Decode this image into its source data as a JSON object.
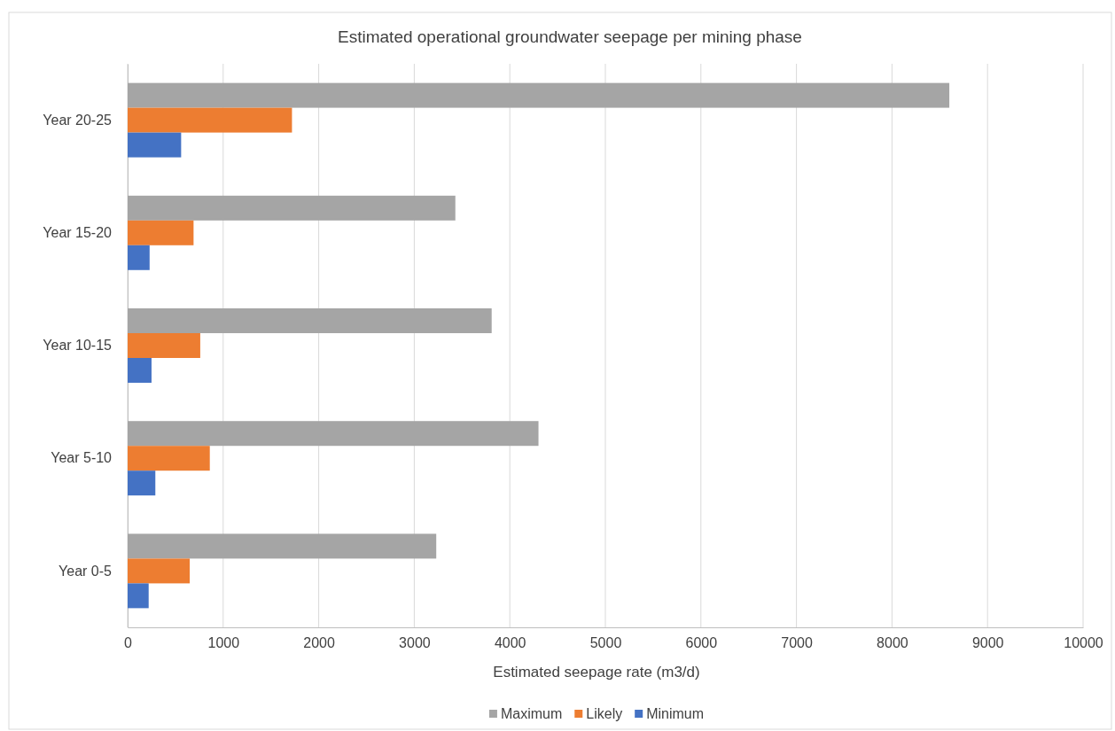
{
  "chart_data": {
    "type": "bar",
    "orientation": "horizontal",
    "title": "Estimated operational groundwater seepage per mining phase",
    "xlabel": "Estimated seepage rate (m3/d)",
    "categories": [
      "Year 20-25",
      "Year 15-20",
      "Year 10-15",
      "Year 5-10",
      "Year 0-5"
    ],
    "series": [
      {
        "name": "Maximum",
        "color": "#a5a5a5",
        "values": [
          8600,
          3430,
          3810,
          4300,
          3230
        ]
      },
      {
        "name": "Likely",
        "color": "#ed7d31",
        "values": [
          1720,
          690,
          760,
          860,
          650
        ]
      },
      {
        "name": "Minimum",
        "color": "#4472c4",
        "values": [
          560,
          230,
          250,
          290,
          220
        ]
      }
    ],
    "xlim": [
      0,
      10000
    ],
    "xticks": [
      0,
      1000,
      2000,
      3000,
      4000,
      5000,
      6000,
      7000,
      8000,
      9000,
      10000
    ],
    "grid": "x",
    "legend": "bottom"
  }
}
